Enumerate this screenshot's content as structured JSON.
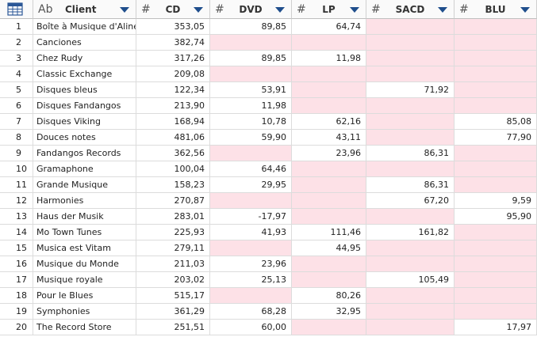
{
  "header": {
    "columns": [
      {
        "kind": "Ab",
        "name": "Client"
      },
      {
        "kind": "#",
        "name": "CD"
      },
      {
        "kind": "#",
        "name": "DVD"
      },
      {
        "kind": "#",
        "name": "LP"
      },
      {
        "kind": "#",
        "name": "SACD"
      },
      {
        "kind": "#",
        "name": "BLU"
      }
    ]
  },
  "table": {
    "rows": [
      [
        1,
        "Boîte à Musique d'Aline",
        "353,05",
        "89,85",
        "64,74",
        null,
        null
      ],
      [
        2,
        "Canciones",
        "382,74",
        null,
        null,
        null,
        null
      ],
      [
        3,
        "Chez Rudy",
        "317,26",
        "89,85",
        "11,98",
        null,
        null
      ],
      [
        4,
        "Classic Exchange",
        "209,08",
        null,
        null,
        null,
        null
      ],
      [
        5,
        "Disques bleus",
        "122,34",
        "53,91",
        null,
        "71,92",
        null
      ],
      [
        6,
        "Disques Fandangos",
        "213,90",
        "11,98",
        null,
        null,
        null
      ],
      [
        7,
        "Disques Viking",
        "168,94",
        "10,78",
        "62,16",
        null,
        "85,08"
      ],
      [
        8,
        "Douces notes",
        "481,06",
        "59,90",
        "43,11",
        null,
        "77,90"
      ],
      [
        9,
        "Fandangos Records",
        "362,56",
        null,
        "23,96",
        "86,31",
        null
      ],
      [
        10,
        "Gramaphone",
        "100,04",
        "64,46",
        null,
        null,
        null
      ],
      [
        11,
        "Grande Musique",
        "158,23",
        "29,95",
        null,
        "86,31",
        null
      ],
      [
        12,
        "Harmonies",
        "270,87",
        null,
        null,
        "67,20",
        "9,59"
      ],
      [
        13,
        "Haus der Musik",
        "283,01",
        "-17,97",
        null,
        null,
        "95,90"
      ],
      [
        14,
        "Mo Town Tunes",
        "225,93",
        "41,93",
        "111,46",
        "161,82",
        null
      ],
      [
        15,
        "Musica est Vitam",
        "279,11",
        null,
        "44,95",
        null,
        null
      ],
      [
        16,
        "Musique du Monde",
        "211,03",
        "23,96",
        null,
        null,
        null
      ],
      [
        17,
        "Musique royale",
        "203,02",
        "25,13",
        null,
        "105,49",
        null
      ],
      [
        18,
        "Pour le Blues",
        "515,17",
        null,
        "80,26",
        null,
        null
      ],
      [
        19,
        "Symphonies",
        "361,29",
        "68,28",
        "32,95",
        null,
        null
      ],
      [
        20,
        "The Record Store",
        "251,51",
        "60,00",
        null,
        null,
        "17,97"
      ]
    ]
  }
}
